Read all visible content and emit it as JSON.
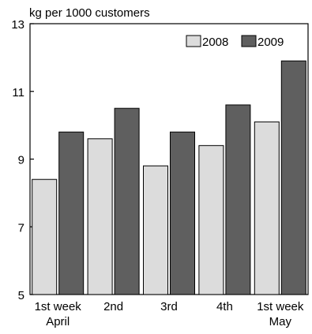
{
  "chart_data": {
    "type": "bar",
    "title": "",
    "subtitle": "kg per 1000 customers",
    "xlabel": "",
    "ylabel": "",
    "ylim": [
      5,
      13
    ],
    "yticks": [
      5,
      7,
      9,
      11,
      13
    ],
    "categories": [
      {
        "line1": "1st week",
        "line2": "April"
      },
      {
        "line1": "2nd",
        "line2": ""
      },
      {
        "line1": "3rd",
        "line2": ""
      },
      {
        "line1": "4th",
        "line2": ""
      },
      {
        "line1": "1st week",
        "line2": "May"
      }
    ],
    "series": [
      {
        "name": "2008",
        "color": "#dcdcdc",
        "values": [
          8.4,
          9.6,
          8.8,
          9.4,
          10.1
        ]
      },
      {
        "name": "2009",
        "color": "#5f5f5f",
        "values": [
          9.8,
          10.5,
          9.8,
          10.6,
          11.9
        ]
      }
    ],
    "legend_position": "top-right",
    "grid": false
  }
}
